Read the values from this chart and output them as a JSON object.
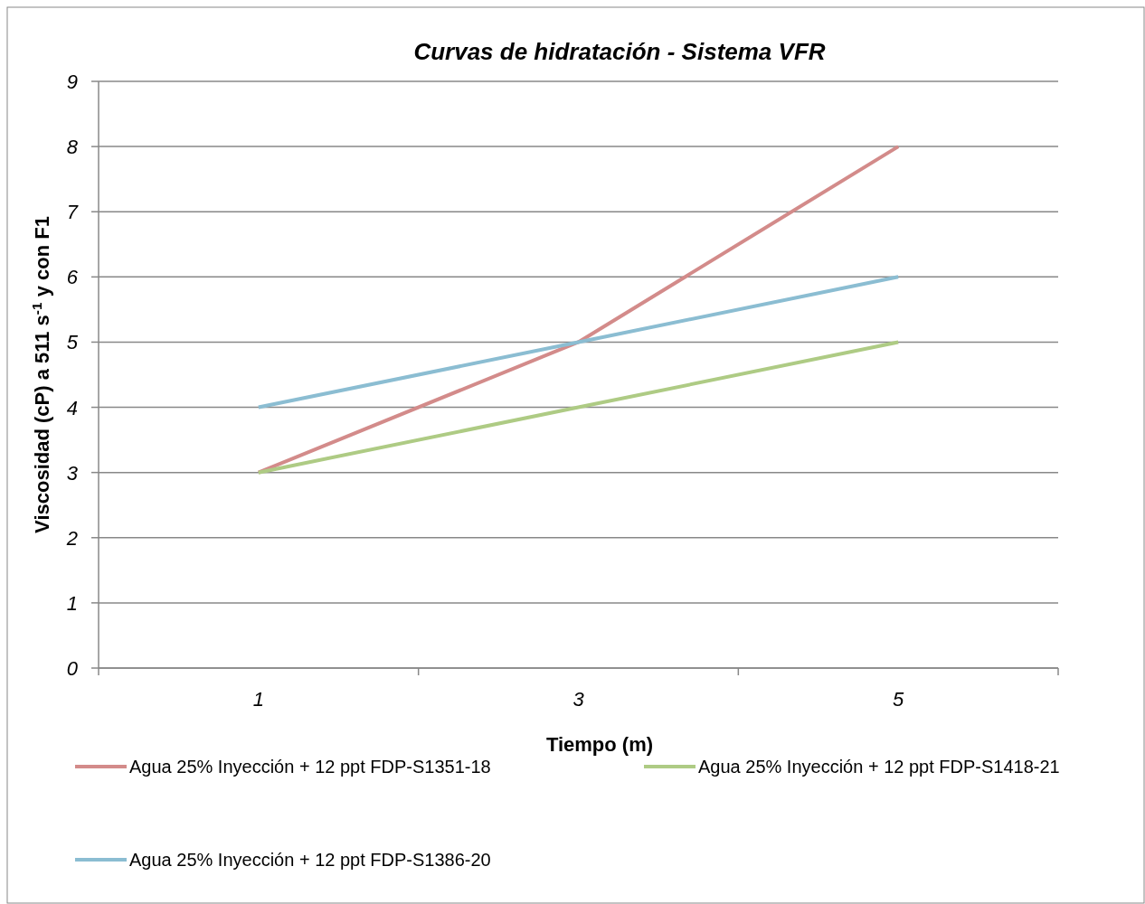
{
  "chart_data": {
    "type": "line",
    "title": "Curvas de hidratación - Sistema VFR",
    "xlabel": "Tiempo (m)",
    "ylabel": "Viscosidad (cP) a 511 s$^{-1}$ y con F1",
    "categories": [
      "1",
      "3",
      "5"
    ],
    "series": [
      {
        "name": "Agua 25% Inyección  + 12 ppt FDP-S1351-18",
        "color": "#d38b8a",
        "values": [
          3,
          5,
          8
        ]
      },
      {
        "name": "Agua 25% Inyección  + 12 ppt FDP-S1418-21",
        "color": "#aecb84",
        "values": [
          3,
          4,
          5
        ]
      },
      {
        "name": "Agua 25% Inyección  + 12 ppt FDP-S1386-20",
        "color": "#8bbdd2",
        "values": [
          4,
          5,
          6
        ]
      }
    ],
    "ylim": [
      0,
      9
    ],
    "yticks": [
      0,
      1,
      2,
      3,
      4,
      5,
      6,
      7,
      8,
      9
    ],
    "grid": "y",
    "legend": "bottom",
    "marker": "none",
    "line_style": "solid"
  }
}
